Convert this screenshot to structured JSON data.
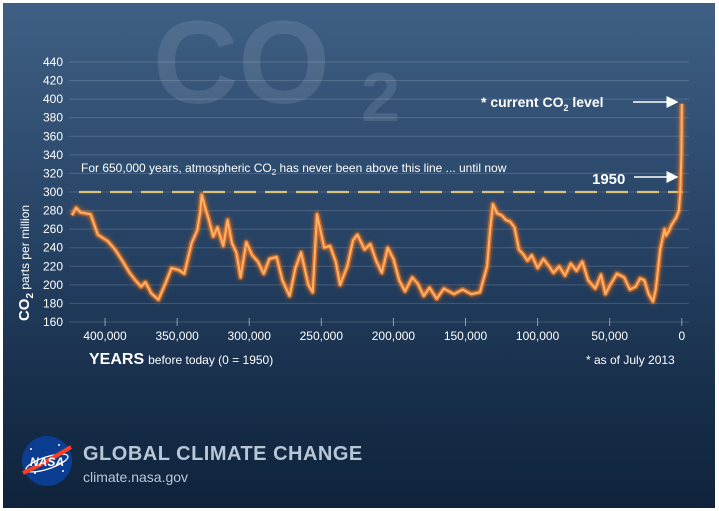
{
  "colors": {
    "line": "#ffb26b",
    "line_glow": "#ff7a1a",
    "threshold": "#d9c27a",
    "text": "#ffffff",
    "brand_text": "#b8c7d8",
    "nasa_blue": "#0b3d91",
    "nasa_red": "#fc3d21"
  },
  "chart_data": {
    "type": "line",
    "title": "CO2",
    "ylabel": "CO2 parts per million",
    "xlabel": "YEARS",
    "xlabel_note": "before today (0 = 1950)",
    "ylim": [
      160,
      440
    ],
    "xlim": [
      425000,
      -5000
    ],
    "yticks": [
      160,
      180,
      200,
      220,
      240,
      260,
      280,
      300,
      320,
      340,
      360,
      380,
      400,
      420,
      440
    ],
    "xticks": [
      400000,
      350000,
      300000,
      250000,
      200000,
      150000,
      100000,
      50000,
      0
    ],
    "xtick_labels": [
      "400,000",
      "350,000",
      "300,000",
      "250,000",
      "200,000",
      "150,000",
      "100,000",
      "50,000",
      "0"
    ],
    "threshold": {
      "value": 300,
      "label": "For 650,000 years, atmospheric CO2 has never been above this line ... until now"
    },
    "annotations": {
      "current": "* current CO2 level",
      "year_1950": "1950",
      "footnote": "* as of July 2013"
    },
    "grid": true,
    "series": [
      {
        "name": "",
        "x": [
          423000,
          420000,
          417000,
          410000,
          405000,
          398000,
          393000,
          388000,
          383000,
          379000,
          375000,
          372000,
          368000,
          363000,
          358000,
          354000,
          349000,
          345000,
          340000,
          336000,
          334000,
          333000,
          330000,
          328000,
          325000,
          322000,
          318000,
          315000,
          312000,
          309000,
          306000,
          302000,
          298000,
          294000,
          290000,
          286000,
          281000,
          277000,
          272000,
          268000,
          264000,
          259000,
          256000,
          253000,
          248000,
          244000,
          240000,
          237000,
          232000,
          228000,
          225000,
          220000,
          216000,
          212000,
          208000,
          204000,
          200000,
          196000,
          192000,
          187000,
          183000,
          179000,
          175000,
          170000,
          165000,
          158000,
          152000,
          146000,
          140000,
          135000,
          133000,
          131000,
          128000,
          125000,
          122000,
          119000,
          116000,
          113000,
          110000,
          107000,
          104000,
          100000,
          96000,
          92000,
          89000,
          85000,
          81000,
          77000,
          73000,
          69000,
          65000,
          60000,
          56000,
          53000,
          50000,
          45000,
          40000,
          36000,
          32000,
          29000,
          26000,
          23000,
          20000,
          18000,
          15000,
          12000,
          11000,
          9000,
          7000,
          4000,
          2000,
          1000,
          300,
          0
        ],
        "y": [
          275,
          283,
          278,
          276,
          254,
          247,
          238,
          226,
          213,
          205,
          198,
          203,
          191,
          184,
          202,
          218,
          216,
          212,
          245,
          259,
          278,
          297,
          280,
          270,
          252,
          262,
          242,
          270,
          245,
          235,
          208,
          246,
          232,
          225,
          212,
          228,
          230,
          205,
          188,
          218,
          235,
          200,
          192,
          276,
          240,
          242,
          225,
          200,
          220,
          248,
          254,
          238,
          244,
          226,
          213,
          240,
          228,
          205,
          193,
          208,
          201,
          188,
          197,
          185,
          196,
          190,
          195,
          190,
          192,
          220,
          258,
          287,
          277,
          275,
          270,
          268,
          262,
          238,
          233,
          226,
          232,
          218,
          228,
          220,
          213,
          220,
          210,
          223,
          215,
          225,
          205,
          196,
          211,
          190,
          199,
          212,
          208,
          195,
          198,
          207,
          205,
          190,
          182,
          195,
          238,
          260,
          253,
          258,
          265,
          272,
          280,
          300,
          340,
          395
        ]
      }
    ]
  },
  "brand": {
    "title": "GLOBAL CLIMATE CHANGE",
    "url": "climate.nasa.gov",
    "logo_text": "NASA"
  },
  "icons": [
    "nasa-meatball-logo",
    "arrow-right-icon"
  ]
}
